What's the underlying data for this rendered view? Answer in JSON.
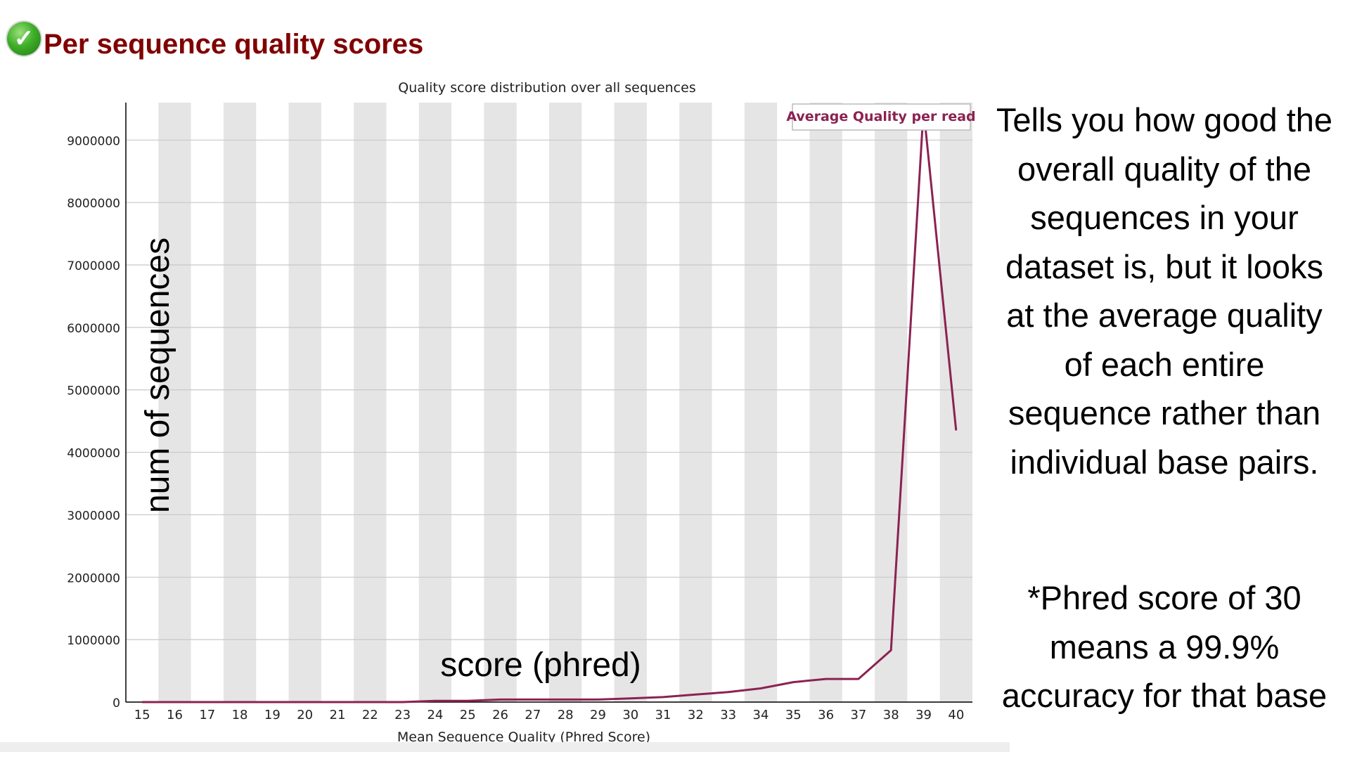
{
  "module": {
    "title": "Per sequence quality scores",
    "status_icon": "check-circle-icon",
    "status": "pass",
    "status_color": "#3fae2a",
    "title_color": "#800000"
  },
  "chart_data": {
    "type": "line",
    "title": "Quality score distribution over all sequences",
    "xlabel": "Mean Sequence Quality (Phred Score)",
    "ylabel": "",
    "x": [
      15,
      16,
      17,
      18,
      19,
      20,
      21,
      22,
      23,
      24,
      25,
      26,
      27,
      28,
      29,
      30,
      31,
      32,
      33,
      34,
      35,
      36,
      37,
      38,
      39,
      40
    ],
    "series": [
      {
        "name": "Average Quality per read",
        "color": "#8b2252",
        "values": [
          0,
          0,
          0,
          0,
          0,
          0,
          0,
          0,
          0,
          20000,
          20000,
          40000,
          40000,
          40000,
          40000,
          60000,
          80000,
          120000,
          160000,
          220000,
          320000,
          370000,
          370000,
          830000,
          9500000,
          4350000
        ]
      }
    ],
    "ylim": [
      0,
      9600000
    ],
    "yticks": [
      0,
      1000000,
      2000000,
      3000000,
      4000000,
      5000000,
      6000000,
      7000000,
      8000000,
      9000000
    ],
    "xlim": [
      14.5,
      40.5
    ],
    "grid": "horizontal lines, alternating vertical shaded bands",
    "band_color": "#e5e5e5",
    "legend_position": "top-right"
  },
  "annotations": {
    "y_overlay": "num of sequences",
    "x_overlay": "score (phred)",
    "note_main": "Tells you how good the\noverall quality of the\nsequences in your\ndataset is, but it looks\nat the average quality\nof each entire\nsequence rather than\nindividual base pairs.",
    "note_phred": "*Phred score of 30\nmeans a 99.9%\naccuracy for that base"
  }
}
